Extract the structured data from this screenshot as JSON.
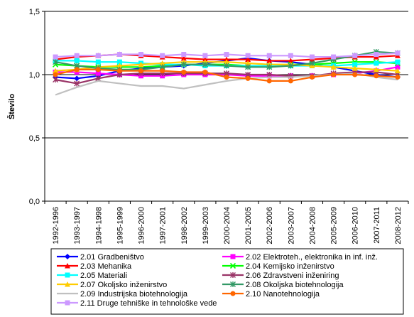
{
  "chart_data": {
    "type": "line",
    "title": "",
    "xlabel": "",
    "ylabel": "Število",
    "ylim": [
      0,
      1.5
    ],
    "yticks": [
      "0,0",
      "0,5",
      "1,0",
      "1,5"
    ],
    "ytick_values": [
      0,
      0.5,
      1.0,
      1.5
    ],
    "grid": "horizontal",
    "legend_position": "bottom",
    "categories": [
      "1992-1996",
      "1993-1997",
      "1994-1998",
      "1995-1999",
      "1996-2000",
      "1997-2001",
      "1998-2002",
      "1999-2003",
      "2000-2004",
      "2001-2005",
      "2002-2006",
      "2003-2007",
      "2004-2008",
      "2005-2009",
      "2006-2010",
      "2007-2011",
      "2008-2012"
    ],
    "series": [
      {
        "name": "2.01 Gradbeništvo",
        "color": "#0000ff",
        "marker": "diamond",
        "values": [
          0.98,
          0.97,
          0.99,
          1.03,
          1.05,
          1.06,
          1.07,
          1.09,
          1.11,
          1.13,
          1.11,
          1.1,
          1.08,
          1.06,
          1.03,
          1.0,
          0.98
        ]
      },
      {
        "name": "2.02 Elektroteh., elektronika in inf. inž.",
        "color": "#ff00ff",
        "marker": "square",
        "values": [
          1.02,
          1.02,
          1.01,
          1.0,
          0.99,
          0.99,
          1.0,
          1.0,
          1.0,
          0.99,
          0.99,
          0.99,
          0.99,
          1.0,
          1.01,
          1.03,
          1.06
        ]
      },
      {
        "name": "2.03 Mehanika",
        "color": "#ff0000",
        "marker": "triangle",
        "values": [
          1.12,
          1.14,
          1.15,
          1.16,
          1.15,
          1.14,
          1.13,
          1.12,
          1.12,
          1.12,
          1.11,
          1.11,
          1.12,
          1.13,
          1.14,
          1.14,
          1.15
        ]
      },
      {
        "name": "2.04 Kemijsko inženirstvo",
        "color": "#00ff00",
        "marker": "x",
        "values": [
          1.08,
          1.07,
          1.06,
          1.06,
          1.06,
          1.07,
          1.08,
          1.08,
          1.08,
          1.07,
          1.07,
          1.08,
          1.08,
          1.09,
          1.1,
          1.1,
          1.09
        ]
      },
      {
        "name": "2.05 Materiali",
        "color": "#00ffff",
        "marker": "square",
        "values": [
          1.11,
          1.11,
          1.1,
          1.1,
          1.09,
          1.08,
          1.08,
          1.07,
          1.07,
          1.07,
          1.07,
          1.07,
          1.07,
          1.07,
          1.08,
          1.09,
          1.1
        ]
      },
      {
        "name": "2.06 Zdravstveni inženiring",
        "color": "#993366",
        "marker": "star",
        "values": [
          0.96,
          0.93,
          0.97,
          1.0,
          1.01,
          1.01,
          1.01,
          1.01,
          1.01,
          1.0,
          1.0,
          0.99,
          0.99,
          1.01,
          1.02,
          1.02,
          1.0
        ]
      },
      {
        "name": "2.07 Okoljsko inženirstvo",
        "color": "#ffcc00",
        "marker": "triangle",
        "values": [
          1.03,
          1.04,
          1.06,
          1.07,
          1.08,
          1.09,
          1.1,
          1.1,
          1.1,
          1.09,
          1.08,
          1.08,
          1.07,
          1.06,
          1.05,
          1.04,
          1.03
        ]
      },
      {
        "name": "2.08 Okoljska biotehnologija",
        "color": "#339966",
        "marker": "star",
        "values": [
          1.1,
          1.07,
          1.05,
          1.04,
          1.04,
          1.06,
          1.08,
          1.08,
          1.07,
          1.06,
          1.06,
          1.07,
          1.09,
          1.12,
          1.15,
          1.18,
          1.17
        ]
      },
      {
        "name": "2.09 Industrijska biotehnologija",
        "color": "#c0c0c0",
        "marker": "none",
        "values": [
          0.84,
          0.9,
          0.95,
          0.93,
          0.91,
          0.91,
          0.89,
          0.92,
          0.95,
          0.97,
          0.98,
          0.98,
          0.99,
          1.0,
          1.01,
          0.98,
          0.96
        ]
      },
      {
        "name": "2.10 Nanotehnologija",
        "color": "#ff6600",
        "marker": "circle",
        "values": [
          1.0,
          1.04,
          1.04,
          1.03,
          1.03,
          1.03,
          1.02,
          1.02,
          0.98,
          0.97,
          0.95,
          0.95,
          0.98,
          1.0,
          1.0,
          0.99,
          0.98
        ]
      },
      {
        "name": "2.11 Druge tehniške in tehnološke vede",
        "color": "#cc99ff",
        "marker": "square",
        "values": [
          1.14,
          1.15,
          1.15,
          1.16,
          1.16,
          1.15,
          1.16,
          1.15,
          1.16,
          1.15,
          1.15,
          1.15,
          1.14,
          1.14,
          1.15,
          1.16,
          1.17
        ]
      }
    ]
  }
}
